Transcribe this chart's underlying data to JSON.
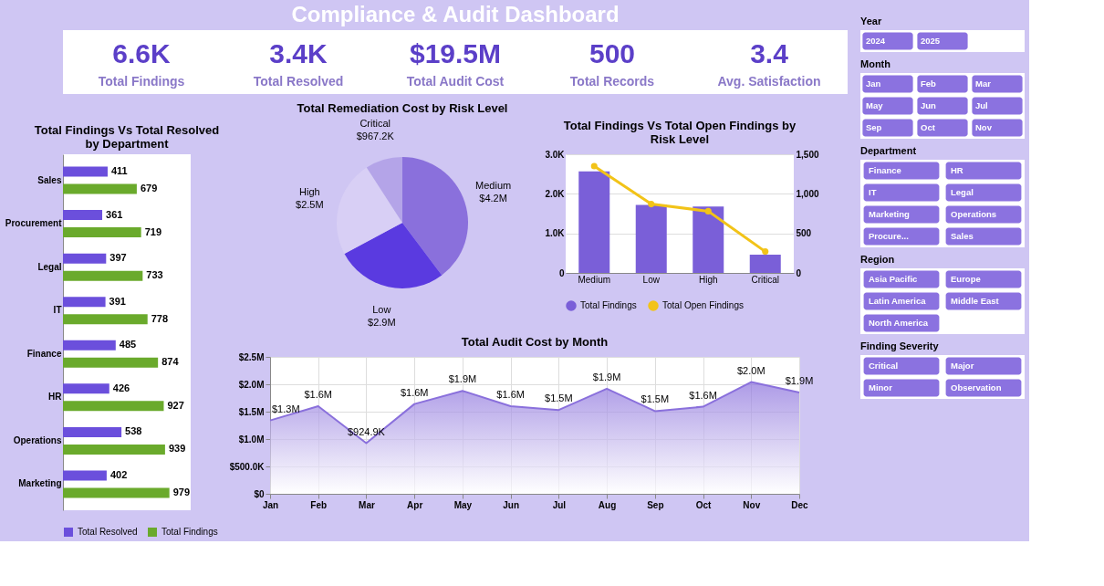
{
  "chart_data": [
    {
      "type": "other",
      "title": "Compliance & Audit Dashboard",
      "color": "#5b3fc8",
      "annotations": [
        "6.6K",
        "Total Findings",
        "3.4K",
        "Total Resolved",
        "$19.5M",
        "Total Audit Cost",
        "500",
        "Total Records",
        "3.4",
        "Avg. Satisfaction"
      ]
    },
    {
      "type": "bar",
      "orientation": "horizontal",
      "title": "Total Findings Vs Total Resolved by Department",
      "categories": [
        "Sales",
        "Procurement",
        "Legal",
        "IT",
        "Finance",
        "HR",
        "Operations",
        "Marketing"
      ],
      "series": [
        {
          "name": "Total Resolved",
          "color": "#6b4fdc",
          "values": [
            411,
            361,
            397,
            391,
            485,
            426,
            538,
            402
          ]
        },
        {
          "name": "Total Findings",
          "color": "#6aaa2c",
          "values": [
            679,
            719,
            733,
            778,
            874,
            927,
            939,
            979
          ]
        }
      ],
      "data_labels": true,
      "legend": "bottom"
    },
    {
      "type": "pie",
      "title": "Total Remediation Cost by Risk Level",
      "categories": [
        "Medium",
        "Low",
        "High",
        "Critical"
      ],
      "values": [
        4200000,
        2900000,
        2500000,
        967200
      ],
      "colors": [
        "#8a70dc",
        "#5a3ae0",
        "#d8cff5",
        "#b4a4e8"
      ],
      "value_labels": [
        "$4.2M",
        "$2.9M",
        "$2.5M",
        "$967.2K"
      ]
    },
    {
      "type": "bar",
      "title": "Total Findings Vs Total Open Findings by Risk Level",
      "categories": [
        "Medium",
        "Low",
        "High",
        "Critical"
      ],
      "series": [
        {
          "name": "Total Findings",
          "color": "#7a5fd8",
          "values": [
            2570,
            1720,
            1680,
            460
          ]
        },
        {
          "name": "Total Open Findings",
          "type": "line",
          "axis": "y2",
          "color": "#f2c318",
          "values": [
            1350,
            870,
            780,
            270
          ]
        }
      ],
      "ylim": [
        0,
        3000
      ],
      "yticks": [
        0,
        {
          "value": 1000,
          "label": "1.0K"
        },
        {
          "value": 2000,
          "label": "2.0K"
        },
        {
          "value": 3000,
          "label": "3.0K"
        }
      ],
      "y2lim": [
        0,
        1500
      ],
      "y2ticks": [
        0,
        500,
        {
          "value": 1000,
          "label": "1,000"
        },
        {
          "value": 1500,
          "label": "1,500"
        }
      ],
      "marker": "circle",
      "grid": "y",
      "legend": "bottom"
    },
    {
      "type": "area",
      "title": "Total Audit Cost by Month",
      "color": "#8a70dc",
      "categories": [
        "Jan",
        "Feb",
        "Mar",
        "Apr",
        "May",
        "Jun",
        "Jul",
        "Aug",
        "Sep",
        "Oct",
        "Nov",
        "Dec"
      ],
      "values": [
        1340000,
        1600000,
        924900,
        1640000,
        1880000,
        1600000,
        1530000,
        1920000,
        1510000,
        1590000,
        2040000,
        1850000
      ],
      "value_labels": [
        "$1.3M",
        "$1.6M",
        "$924.9K",
        "$1.6M",
        "$1.9M",
        "$1.6M",
        "$1.5M",
        "$1.9M",
        "$1.5M",
        "$1.6M",
        "$2.0M",
        "$1.9M"
      ],
      "ylim": [
        0,
        2500000
      ],
      "yticks": [
        {
          "value": 0,
          "label": "$0"
        },
        {
          "value": 500000,
          "label": "$500.0K"
        },
        {
          "value": 1000000,
          "label": "$1.0M"
        },
        {
          "value": 1500000,
          "label": "$1.5M"
        },
        {
          "value": 2000000,
          "label": "$2.0M"
        },
        {
          "value": 2500000,
          "label": "$2.5M"
        }
      ],
      "grid": true
    },
    {
      "type": "other",
      "title": "Year",
      "color": "#8b72e0",
      "categories": [
        "2024",
        "2025"
      ]
    },
    {
      "type": "other",
      "title": "Month",
      "color": "#8b72e0",
      "categories": [
        "Jan",
        "Feb",
        "Mar",
        "May",
        "Jun",
        "Jul",
        "Sep",
        "Oct",
        "Nov"
      ]
    },
    {
      "type": "other",
      "title": "Department",
      "color": "#8b72e0",
      "categories": [
        "Finance",
        "HR",
        "IT",
        "Legal",
        "Marketing",
        "Operations",
        "Procure...",
        "Sales"
      ]
    },
    {
      "type": "other",
      "title": "Region",
      "color": "#8b72e0",
      "categories": [
        "Asia Pacific",
        "Europe",
        "Latin America",
        "Middle East",
        "North America"
      ]
    },
    {
      "type": "other",
      "title": "Finding Severity",
      "color": "#8b72e0",
      "categories": [
        "Critical",
        "Major",
        "Minor",
        "Observation"
      ]
    }
  ]
}
